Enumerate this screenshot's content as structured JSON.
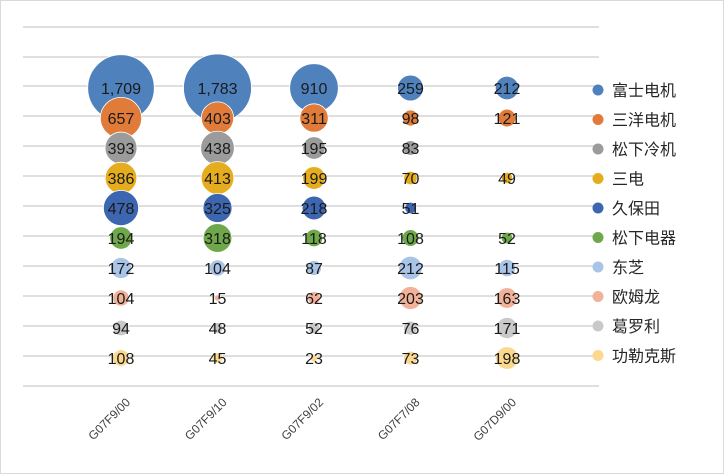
{
  "chart_data": {
    "type": "scatter",
    "subtype": "bubble",
    "categories": [
      "G07F9/00",
      "G07F9/10",
      "G07F9/02",
      "G07F7/08",
      "G07D9/00"
    ],
    "series": [
      {
        "name": "富士电机",
        "color": "#4f81bd",
        "values": [
          1709,
          1783,
          910,
          259,
          212
        ],
        "labels": [
          "1,709",
          "1,783",
          "910",
          "259",
          "212"
        ]
      },
      {
        "name": "三洋电机",
        "color": "#e07b39",
        "values": [
          657,
          403,
          311,
          98,
          121
        ],
        "labels": [
          "657",
          "403",
          "311",
          "98",
          "121"
        ]
      },
      {
        "name": "松下冷机",
        "color": "#9b9b9b",
        "values": [
          393,
          438,
          195,
          83,
          null
        ],
        "labels": [
          "393",
          "438",
          "195",
          "83",
          ""
        ]
      },
      {
        "name": "三电",
        "color": "#e5ad1d",
        "values": [
          386,
          413,
          199,
          70,
          49
        ],
        "labels": [
          "386",
          "413",
          "199",
          "70",
          "49"
        ]
      },
      {
        "name": "久保田",
        "color": "#3d66b0",
        "values": [
          478,
          325,
          218,
          51,
          null
        ],
        "labels": [
          "478",
          "325",
          "218",
          "51",
          ""
        ]
      },
      {
        "name": "松下电器",
        "color": "#6fa84a",
        "values": [
          194,
          318,
          118,
          108,
          52
        ],
        "labels": [
          "194",
          "318",
          "118",
          "108",
          "52"
        ]
      },
      {
        "name": "东芝",
        "color": "#a9c4e6",
        "values": [
          172,
          104,
          87,
          212,
          115
        ],
        "labels": [
          "172",
          "104",
          "87",
          "212",
          "115"
        ]
      },
      {
        "name": "欧姆龙",
        "color": "#f2b199",
        "values": [
          104,
          15,
          62,
          203,
          163
        ],
        "labels": [
          "104",
          "15",
          "62",
          "203",
          "163"
        ]
      },
      {
        "name": "葛罗利",
        "color": "#c9c9c9",
        "values": [
          94,
          48,
          52,
          76,
          171
        ],
        "labels": [
          "94",
          "48",
          "52",
          "76",
          "171"
        ]
      },
      {
        "name": "功勒克斯",
        "color": "#fbd88f",
        "values": [
          108,
          45,
          23,
          73,
          198
        ],
        "labels": [
          "108",
          "45",
          "23",
          "73",
          "198"
        ]
      }
    ],
    "legend_position": "right",
    "grid": true,
    "title": "",
    "xlabel": "",
    "ylabel": ""
  }
}
